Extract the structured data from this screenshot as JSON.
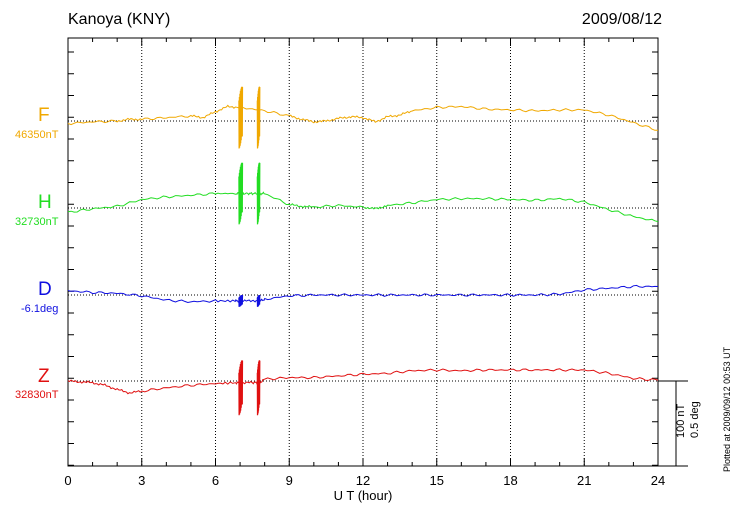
{
  "header": {
    "station": "Kanoya (KNY)",
    "date": "2009/08/12"
  },
  "footnote": "Plotted at 2009/09/12 00:53 UT",
  "scale": {
    "nt": "100 nT",
    "deg": "0.5 deg"
  },
  "chart_data": {
    "type": "line",
    "xlabel": "U T (hour)",
    "xlim": [
      0,
      24
    ],
    "xticks": [
      "0",
      "3",
      "6",
      "9",
      "12",
      "15",
      "18",
      "21",
      "24"
    ],
    "grid": true,
    "series": [
      {
        "name": "F",
        "baseline_label": "46350nT",
        "color": "#f0a800",
        "x": [
          0,
          1,
          2,
          2.5,
          3,
          4,
          5,
          5.5,
          6,
          6.5,
          7,
          8,
          9,
          9.5,
          10,
          10.5,
          11,
          11.5,
          12,
          12.5,
          13,
          13.5,
          14,
          15,
          16,
          17,
          18,
          19,
          20,
          21,
          22,
          23,
          24
        ],
        "y": [
          -3,
          -1,
          0,
          2,
          2,
          4,
          6,
          4,
          11,
          17,
          16,
          12,
          6,
          2,
          -1,
          0,
          3,
          5,
          4,
          -1,
          5,
          7,
          12,
          16,
          17,
          14,
          13,
          12,
          13,
          13,
          7,
          -2,
          -11
        ]
      },
      {
        "name": "H",
        "baseline_label": "32730nT",
        "color": "#22dd22",
        "x": [
          0,
          1,
          2,
          3,
          4,
          5,
          6,
          6.8,
          7,
          7.2,
          7.5,
          7.8,
          8,
          9,
          9.5,
          10,
          11,
          12,
          12.5,
          13,
          14,
          15,
          16,
          17,
          18,
          19,
          20,
          21,
          22,
          23,
          24
        ],
        "y": [
          -5,
          -1,
          2,
          10,
          13,
          15,
          17,
          17,
          17,
          17,
          17,
          17,
          17,
          4,
          2,
          1,
          3,
          1,
          -1,
          3,
          6,
          10,
          11,
          11,
          10,
          9,
          11,
          7,
          -2,
          -10,
          -16
        ]
      },
      {
        "name": "D",
        "baseline_label": "-6.1deg",
        "color": "#1010e0",
        "x": [
          0,
          1,
          2,
          3,
          4,
          5,
          6,
          6.8,
          7,
          7.5,
          7.8,
          8,
          9,
          10,
          11,
          12,
          13,
          14,
          15,
          16,
          17,
          18,
          19,
          20,
          21,
          22,
          23,
          24
        ],
        "y": [
          5,
          3,
          2,
          -1,
          -6,
          -8,
          -7,
          -7,
          -7,
          -7,
          -7,
          -5,
          -1,
          0,
          0,
          0,
          0,
          0,
          0,
          0,
          0,
          0,
          0,
          1,
          6,
          8,
          10,
          10
        ]
      },
      {
        "name": "Z",
        "baseline_label": "32830nT",
        "color": "#e01010",
        "x": [
          0,
          0.5,
          1,
          1.5,
          2,
          2.5,
          3,
          4,
          5,
          6,
          6.8,
          7,
          7.5,
          7.8,
          8,
          9,
          10,
          11,
          12,
          13,
          14,
          15,
          16,
          17,
          18,
          19,
          20,
          21,
          22,
          23,
          24
        ],
        "y": [
          0,
          -1,
          -2,
          -5,
          -10,
          -14,
          -12,
          -8,
          -5,
          -3,
          -2,
          -2,
          -2,
          -2,
          2,
          4,
          4,
          6,
          8,
          9,
          12,
          13,
          12,
          13,
          13,
          13,
          13,
          13,
          9,
          3,
          1
        ]
      }
    ]
  }
}
